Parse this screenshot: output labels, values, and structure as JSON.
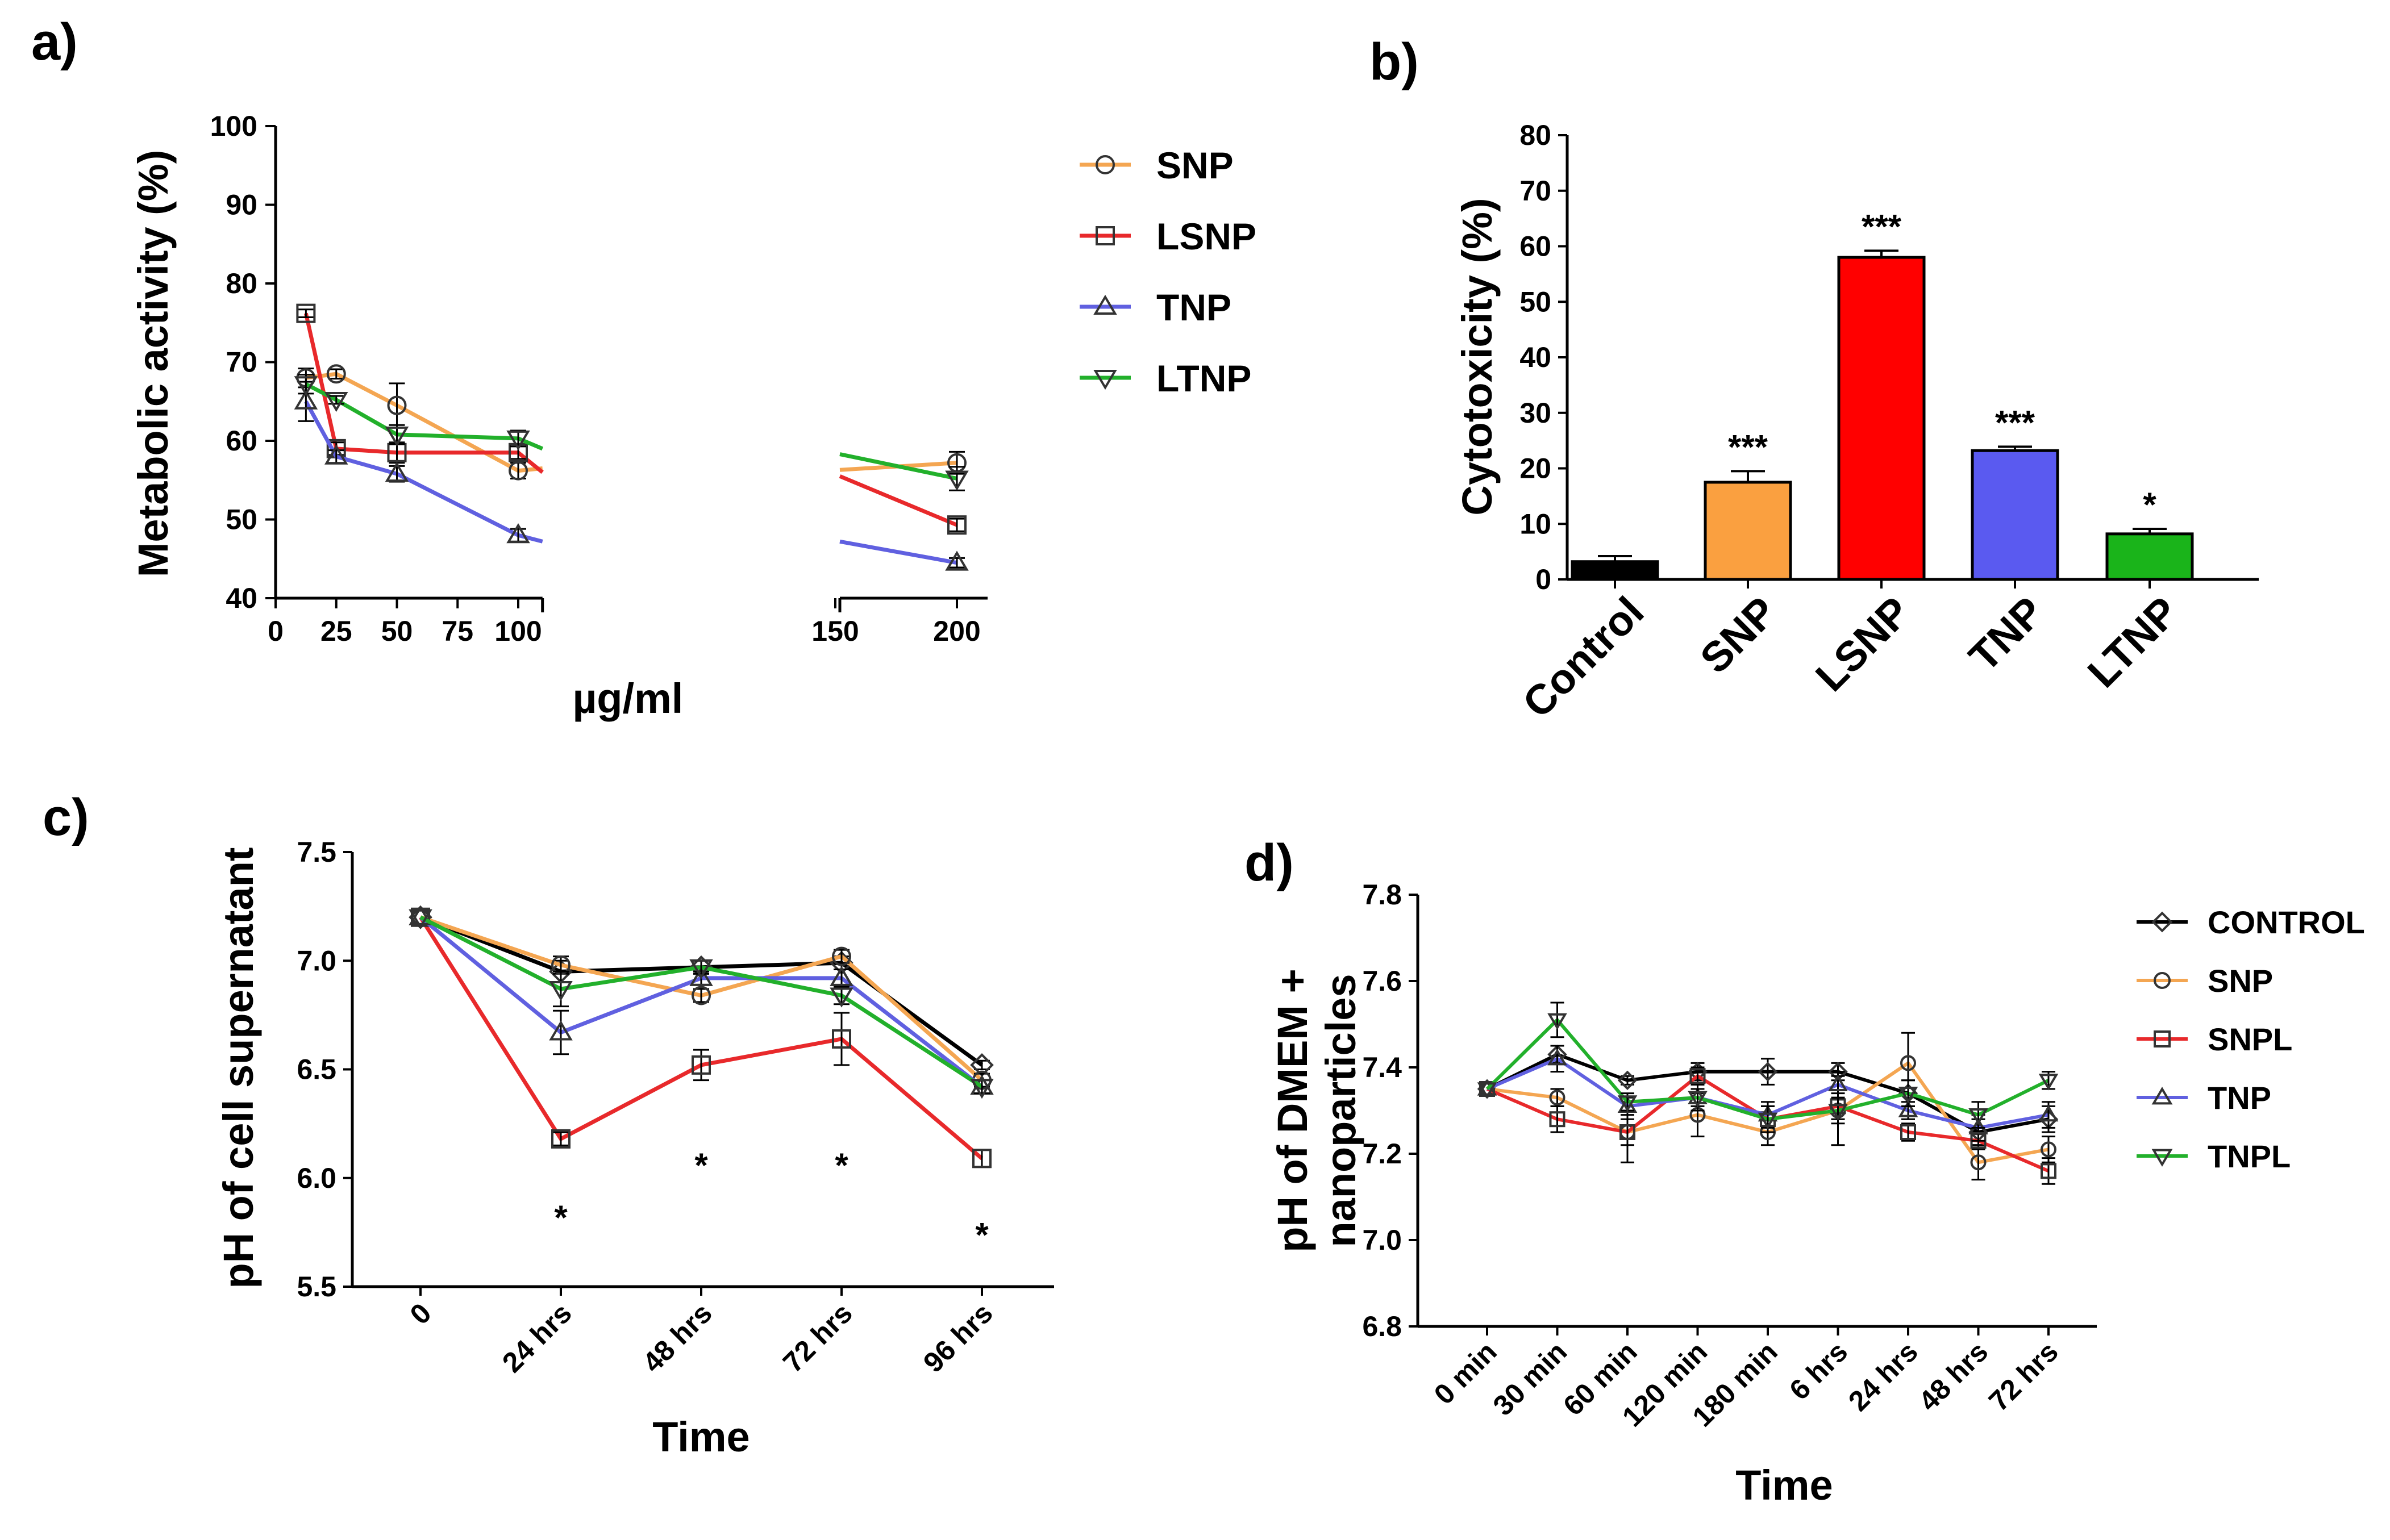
{
  "chart_data": [
    {
      "id": "a",
      "panel_label": "a)",
      "type": "line",
      "xlabel": "µg/ml",
      "ylabel": "Metabolic activity (%)",
      "x_ticks": [
        0,
        25,
        50,
        75,
        100,
        150,
        200
      ],
      "y_ticks": [
        40,
        50,
        60,
        70,
        80,
        90,
        100
      ],
      "xlim_segments": [
        [
          0,
          110
        ],
        [
          150,
          200
        ]
      ],
      "ylim": [
        40,
        100
      ],
      "series": [
        {
          "name": "SNP",
          "color": "#F4A652",
          "marker": "circle",
          "x": [
            12.5,
            25,
            50,
            100,
            200
          ],
          "y": [
            68,
            68.5,
            64.5,
            56.2,
            57.2
          ],
          "err": [
            1.2,
            0.6,
            2.8,
            1,
            1.4
          ],
          "gap_y": [
            56.5,
            56.3
          ]
        },
        {
          "name": "LSNP",
          "color": "#E8292B",
          "marker": "square",
          "x": [
            12.5,
            25,
            50,
            100,
            200
          ],
          "y": [
            76.2,
            59,
            58.5,
            58.5,
            49.3
          ],
          "err": [
            0.5,
            0.8,
            1.3,
            0.8,
            0.8
          ],
          "gap_y": [
            56,
            55.5
          ]
        },
        {
          "name": "TNP",
          "color": "#6060E0",
          "marker": "triangle-up",
          "x": [
            12.5,
            25,
            50,
            100,
            200
          ],
          "y": [
            65,
            58,
            55.8,
            48,
            44.5
          ],
          "err": [
            2.5,
            0.8,
            1,
            0.8,
            0.6
          ],
          "gap_y": [
            47.2,
            47.2
          ]
        },
        {
          "name": "LTNP",
          "color": "#22B02B",
          "marker": "triangle-down",
          "x": [
            12.5,
            25,
            50,
            100,
            200
          ],
          "y": [
            67.2,
            65.2,
            60.8,
            60.3,
            55.2
          ],
          "err": [
            1.2,
            0.5,
            1.2,
            1,
            1.5
          ],
          "gap_y": [
            59,
            58.3
          ]
        }
      ]
    },
    {
      "id": "b",
      "panel_label": "b)",
      "type": "bar",
      "ylabel": "Cytotoxicity (%)",
      "categories": [
        "Control",
        "SNP",
        "LSNP",
        "TNP",
        "LTNP"
      ],
      "values": [
        3.2,
        17.5,
        58,
        23.2,
        8.2
      ],
      "errors": [
        1,
        2,
        1.2,
        0.7,
        0.9
      ],
      "colors": [
        "#000000",
        "#FAA040",
        "#FF0000",
        "#5A5AF0",
        "#1AB41A"
      ],
      "annotations": [
        "",
        "***",
        "***",
        "***",
        "*"
      ],
      "y_ticks": [
        0,
        10,
        20,
        30,
        40,
        50,
        60,
        70,
        80
      ],
      "ylim": [
        0,
        80
      ]
    },
    {
      "id": "c",
      "panel_label": "c)",
      "type": "line",
      "xlabel": "Time",
      "ylabel": "pH of cell supernatant",
      "categories": [
        "0",
        "24 hrs",
        "48 hrs",
        "72 hrs",
        "96 hrs"
      ],
      "y_ticks": [
        "5.5",
        "6.0",
        "6.5",
        "7.0",
        "7.5"
      ],
      "ylim": [
        5.5,
        7.5
      ],
      "series": [
        {
          "name": "CONTROL",
          "color": "#000000",
          "marker": "diamond",
          "y": [
            7.2,
            6.95,
            6.97,
            6.99,
            6.52
          ],
          "err": [
            0,
            0.05,
            0.03,
            0.03,
            0.02
          ]
        },
        {
          "name": "SNP",
          "color": "#F4A652",
          "marker": "circle",
          "y": [
            7.2,
            6.98,
            6.84,
            7.02,
            6.45
          ],
          "err": [
            0,
            0.04,
            0.03,
            0.03,
            0.03
          ]
        },
        {
          "name": "SNPL",
          "color": "#E8292B",
          "marker": "square",
          "y": [
            7.2,
            6.18,
            6.52,
            6.64,
            6.09
          ],
          "err": [
            0,
            0.03,
            0.07,
            0.12,
            0.04
          ]
        },
        {
          "name": "TNP",
          "color": "#6060E0",
          "marker": "triangle-up",
          "y": [
            7.2,
            6.67,
            6.92,
            6.92,
            6.42
          ],
          "err": [
            0,
            0.1,
            0.03,
            0.04,
            0.03
          ]
        },
        {
          "name": "TNPL",
          "color": "#22B02B",
          "marker": "triangle-down",
          "y": [
            7.2,
            6.87,
            6.97,
            6.84,
            6.42
          ],
          "err": [
            0,
            0.08,
            0.03,
            0.04,
            0.03
          ]
        }
      ],
      "annotations": [
        {
          "category": "24 hrs",
          "text": "*",
          "y": 5.83
        },
        {
          "category": "48 hrs",
          "text": "*",
          "y": 6.07
        },
        {
          "category": "72 hrs",
          "text": "*",
          "y": 6.07
        },
        {
          "category": "96 hrs",
          "text": "*",
          "y": 5.75
        }
      ]
    },
    {
      "id": "d",
      "panel_label": "d)",
      "type": "line",
      "xlabel": "Time",
      "ylabel_lines": [
        "pH of DMEM +",
        "nanoparticles"
      ],
      "categories": [
        "0 min",
        "30 min",
        "60 min",
        "120 min",
        "180 min",
        "6 hrs",
        "24 hrs",
        "48 hrs",
        "72 hrs"
      ],
      "y_ticks": [
        "6.8",
        "7.0",
        "7.2",
        "7.4",
        "7.6",
        "7.8"
      ],
      "ylim": [
        6.8,
        7.8
      ],
      "series": [
        {
          "name": "CONTROL",
          "color": "#000000",
          "marker": "diamond",
          "y": [
            7.35,
            7.43,
            7.37,
            7.39,
            7.39,
            7.39,
            7.34,
            7.25,
            7.28
          ],
          "err": [
            0,
            0.02,
            0.01,
            0.02,
            0.03,
            0.02,
            0.03,
            0.03,
            0.03
          ]
        },
        {
          "name": "SNP",
          "color": "#F4A652",
          "marker": "circle",
          "y": [
            7.35,
            7.33,
            7.25,
            7.29,
            7.25,
            7.3,
            7.41,
            7.18,
            7.21
          ],
          "err": [
            0,
            0.02,
            0.07,
            0.05,
            0.03,
            0.08,
            0.07,
            0.04,
            0.03
          ]
        },
        {
          "name": "SNPL",
          "color": "#E8292B",
          "marker": "square",
          "y": [
            7.35,
            7.28,
            7.25,
            7.38,
            7.28,
            7.31,
            7.25,
            7.23,
            7.16
          ],
          "err": [
            0,
            0.03,
            0.03,
            0.02,
            0.03,
            0.03,
            0.02,
            0.02,
            0.03
          ]
        },
        {
          "name": "TNP",
          "color": "#6060E0",
          "marker": "triangle-up",
          "y": [
            7.35,
            7.42,
            7.31,
            7.33,
            7.29,
            7.36,
            7.3,
            7.26,
            7.29
          ],
          "err": [
            0,
            0.03,
            0.02,
            0.03,
            0.03,
            0.03,
            0.02,
            0.03,
            0.03
          ]
        },
        {
          "name": "TNPL",
          "color": "#22B02B",
          "marker": "triangle-down",
          "y": [
            7.35,
            7.51,
            7.32,
            7.33,
            7.28,
            7.3,
            7.34,
            7.29,
            7.37
          ],
          "err": [
            0,
            0.04,
            0.02,
            0.02,
            0.03,
            0.03,
            0.03,
            0.03,
            0.02
          ]
        }
      ]
    }
  ]
}
